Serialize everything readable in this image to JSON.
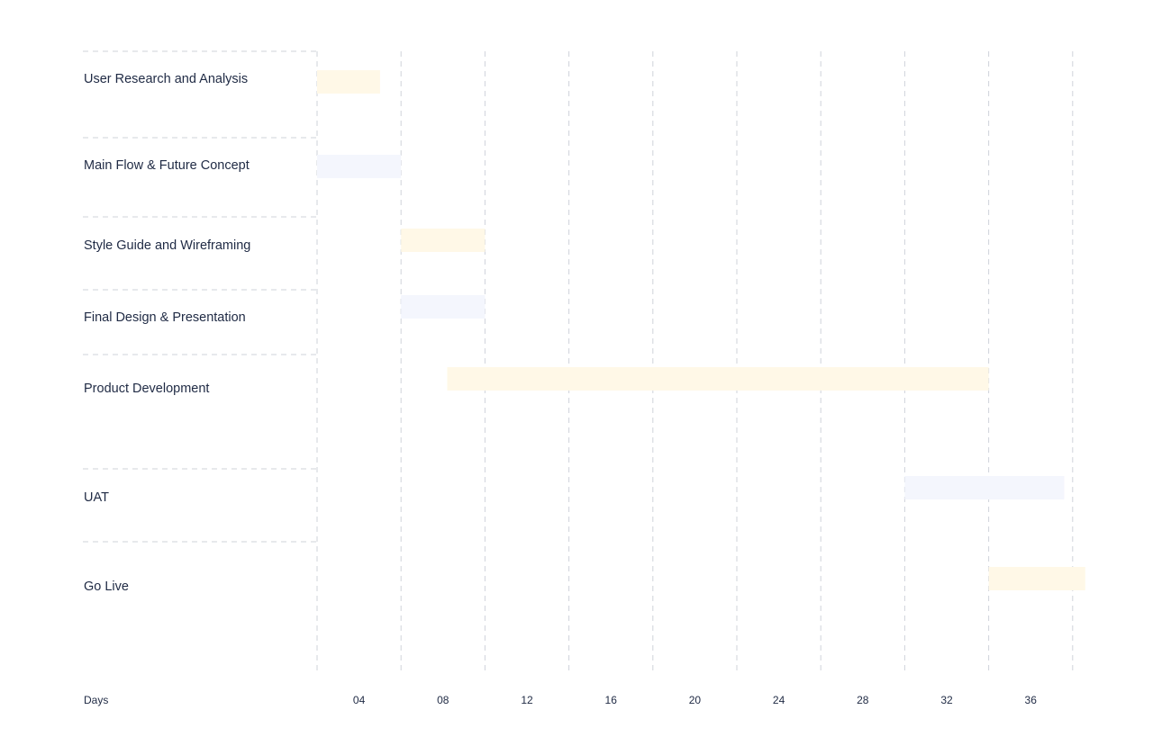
{
  "chart_data": {
    "type": "bar",
    "orientation": "horizontal",
    "xlabel": "Days",
    "ylabel": "",
    "xlim": [
      0,
      37
    ],
    "x_ticks": [
      4,
      8,
      12,
      16,
      20,
      24,
      28,
      32,
      36
    ],
    "x_tick_labels": [
      "04",
      "08",
      "12",
      "16",
      "20",
      "24",
      "28",
      "32",
      "36"
    ],
    "gridlines": [
      0,
      4,
      8,
      12,
      16,
      20,
      24,
      28,
      32,
      36
    ],
    "grid": true,
    "colors": {
      "yellow": "#fff8e7",
      "blue": "#f4f6fd",
      "grid": "#cfd3da",
      "text": "#1f2a44"
    },
    "tasks": [
      {
        "label": "User Research and Analysis",
        "start": 0,
        "end": 3,
        "color": "yellow"
      },
      {
        "label": "Main Flow & Future Concept",
        "start": 0,
        "end": 4,
        "color": "blue"
      },
      {
        "label": "Style Guide and Wireframing",
        "start": 4,
        "end": 8,
        "color": "yellow"
      },
      {
        "label": "Final Design & Presentation",
        "start": 4,
        "end": 8,
        "color": "blue"
      },
      {
        "label": "Product Development",
        "start": 6.2,
        "end": 32,
        "color": "yellow"
      },
      {
        "label": "UAT",
        "start": 28,
        "end": 35.6,
        "color": "blue"
      },
      {
        "label": "Go Live",
        "start": 32,
        "end": 36.6,
        "color": "yellow"
      }
    ]
  }
}
